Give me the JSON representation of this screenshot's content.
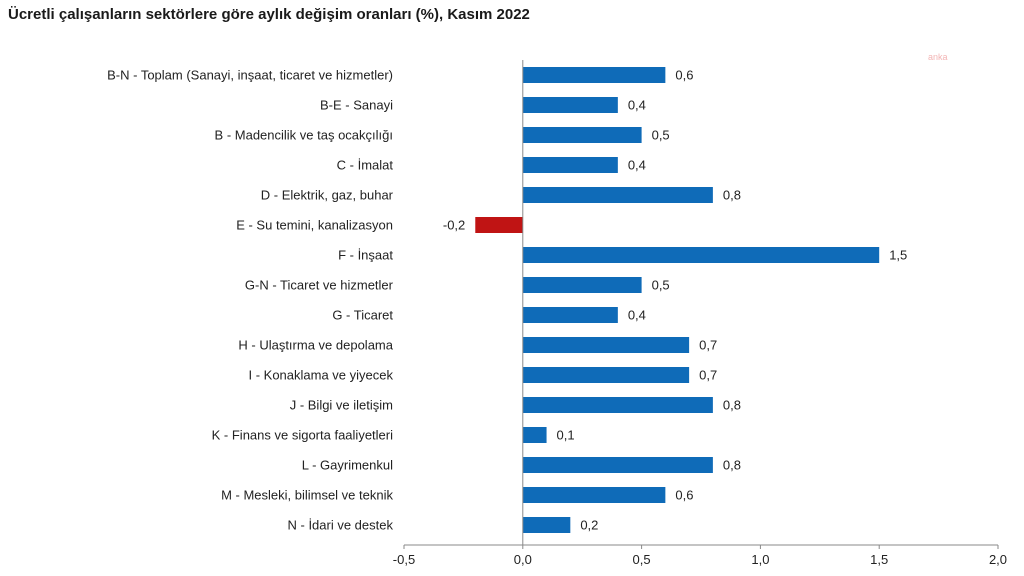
{
  "title": "Ücretli çalışanların sektörlere göre aylık değişim oranları (%), Kasım 2022",
  "watermark": "anka",
  "colors": {
    "positive": "#0f6bb8",
    "negative": "#c01414",
    "axis": "#888888"
  },
  "chart_data": {
    "type": "bar",
    "orientation": "horizontal",
    "title": "Ücretli çalışanların sektörlere göre aylık değişim oranları (%), Kasım 2022",
    "categories": [
      "B-N - Toplam (Sanayi, inşaat, ticaret ve hizmetler)",
      "B-E - Sanayi",
      "B - Madencilik ve taş ocakçılığı",
      "C - İmalat",
      "D - Elektrik, gaz, buhar",
      "E - Su temini, kanalizasyon",
      "F - İnşaat",
      "G-N - Ticaret ve hizmetler",
      "G - Ticaret",
      "H - Ulaştırma ve depolama",
      "I - Konaklama ve yiyecek",
      "J - Bilgi ve iletişim",
      "K - Finans ve sigorta faaliyetleri",
      "L - Gayrimenkul",
      "M - Mesleki, bilimsel ve teknik",
      "N - İdari ve destek"
    ],
    "values": [
      0.6,
      0.4,
      0.5,
      0.4,
      0.8,
      -0.2,
      1.5,
      0.5,
      0.4,
      0.7,
      0.7,
      0.8,
      0.1,
      0.8,
      0.6,
      0.2
    ],
    "value_labels": [
      "0,6",
      "0,4",
      "0,5",
      "0,4",
      "0,8",
      "-0,2",
      "1,5",
      "0,5",
      "0,4",
      "0,7",
      "0,7",
      "0,8",
      "0,1",
      "0,8",
      "0,6",
      "0,2"
    ],
    "xlim": [
      -0.5,
      2.0
    ],
    "xticks": [
      -0.5,
      0.0,
      0.5,
      1.0,
      1.5,
      2.0
    ],
    "xtick_labels": [
      "-0,5",
      "0,0",
      "0,5",
      "1,0",
      "1,5",
      "2,0"
    ],
    "grid": false,
    "legend": "none"
  }
}
